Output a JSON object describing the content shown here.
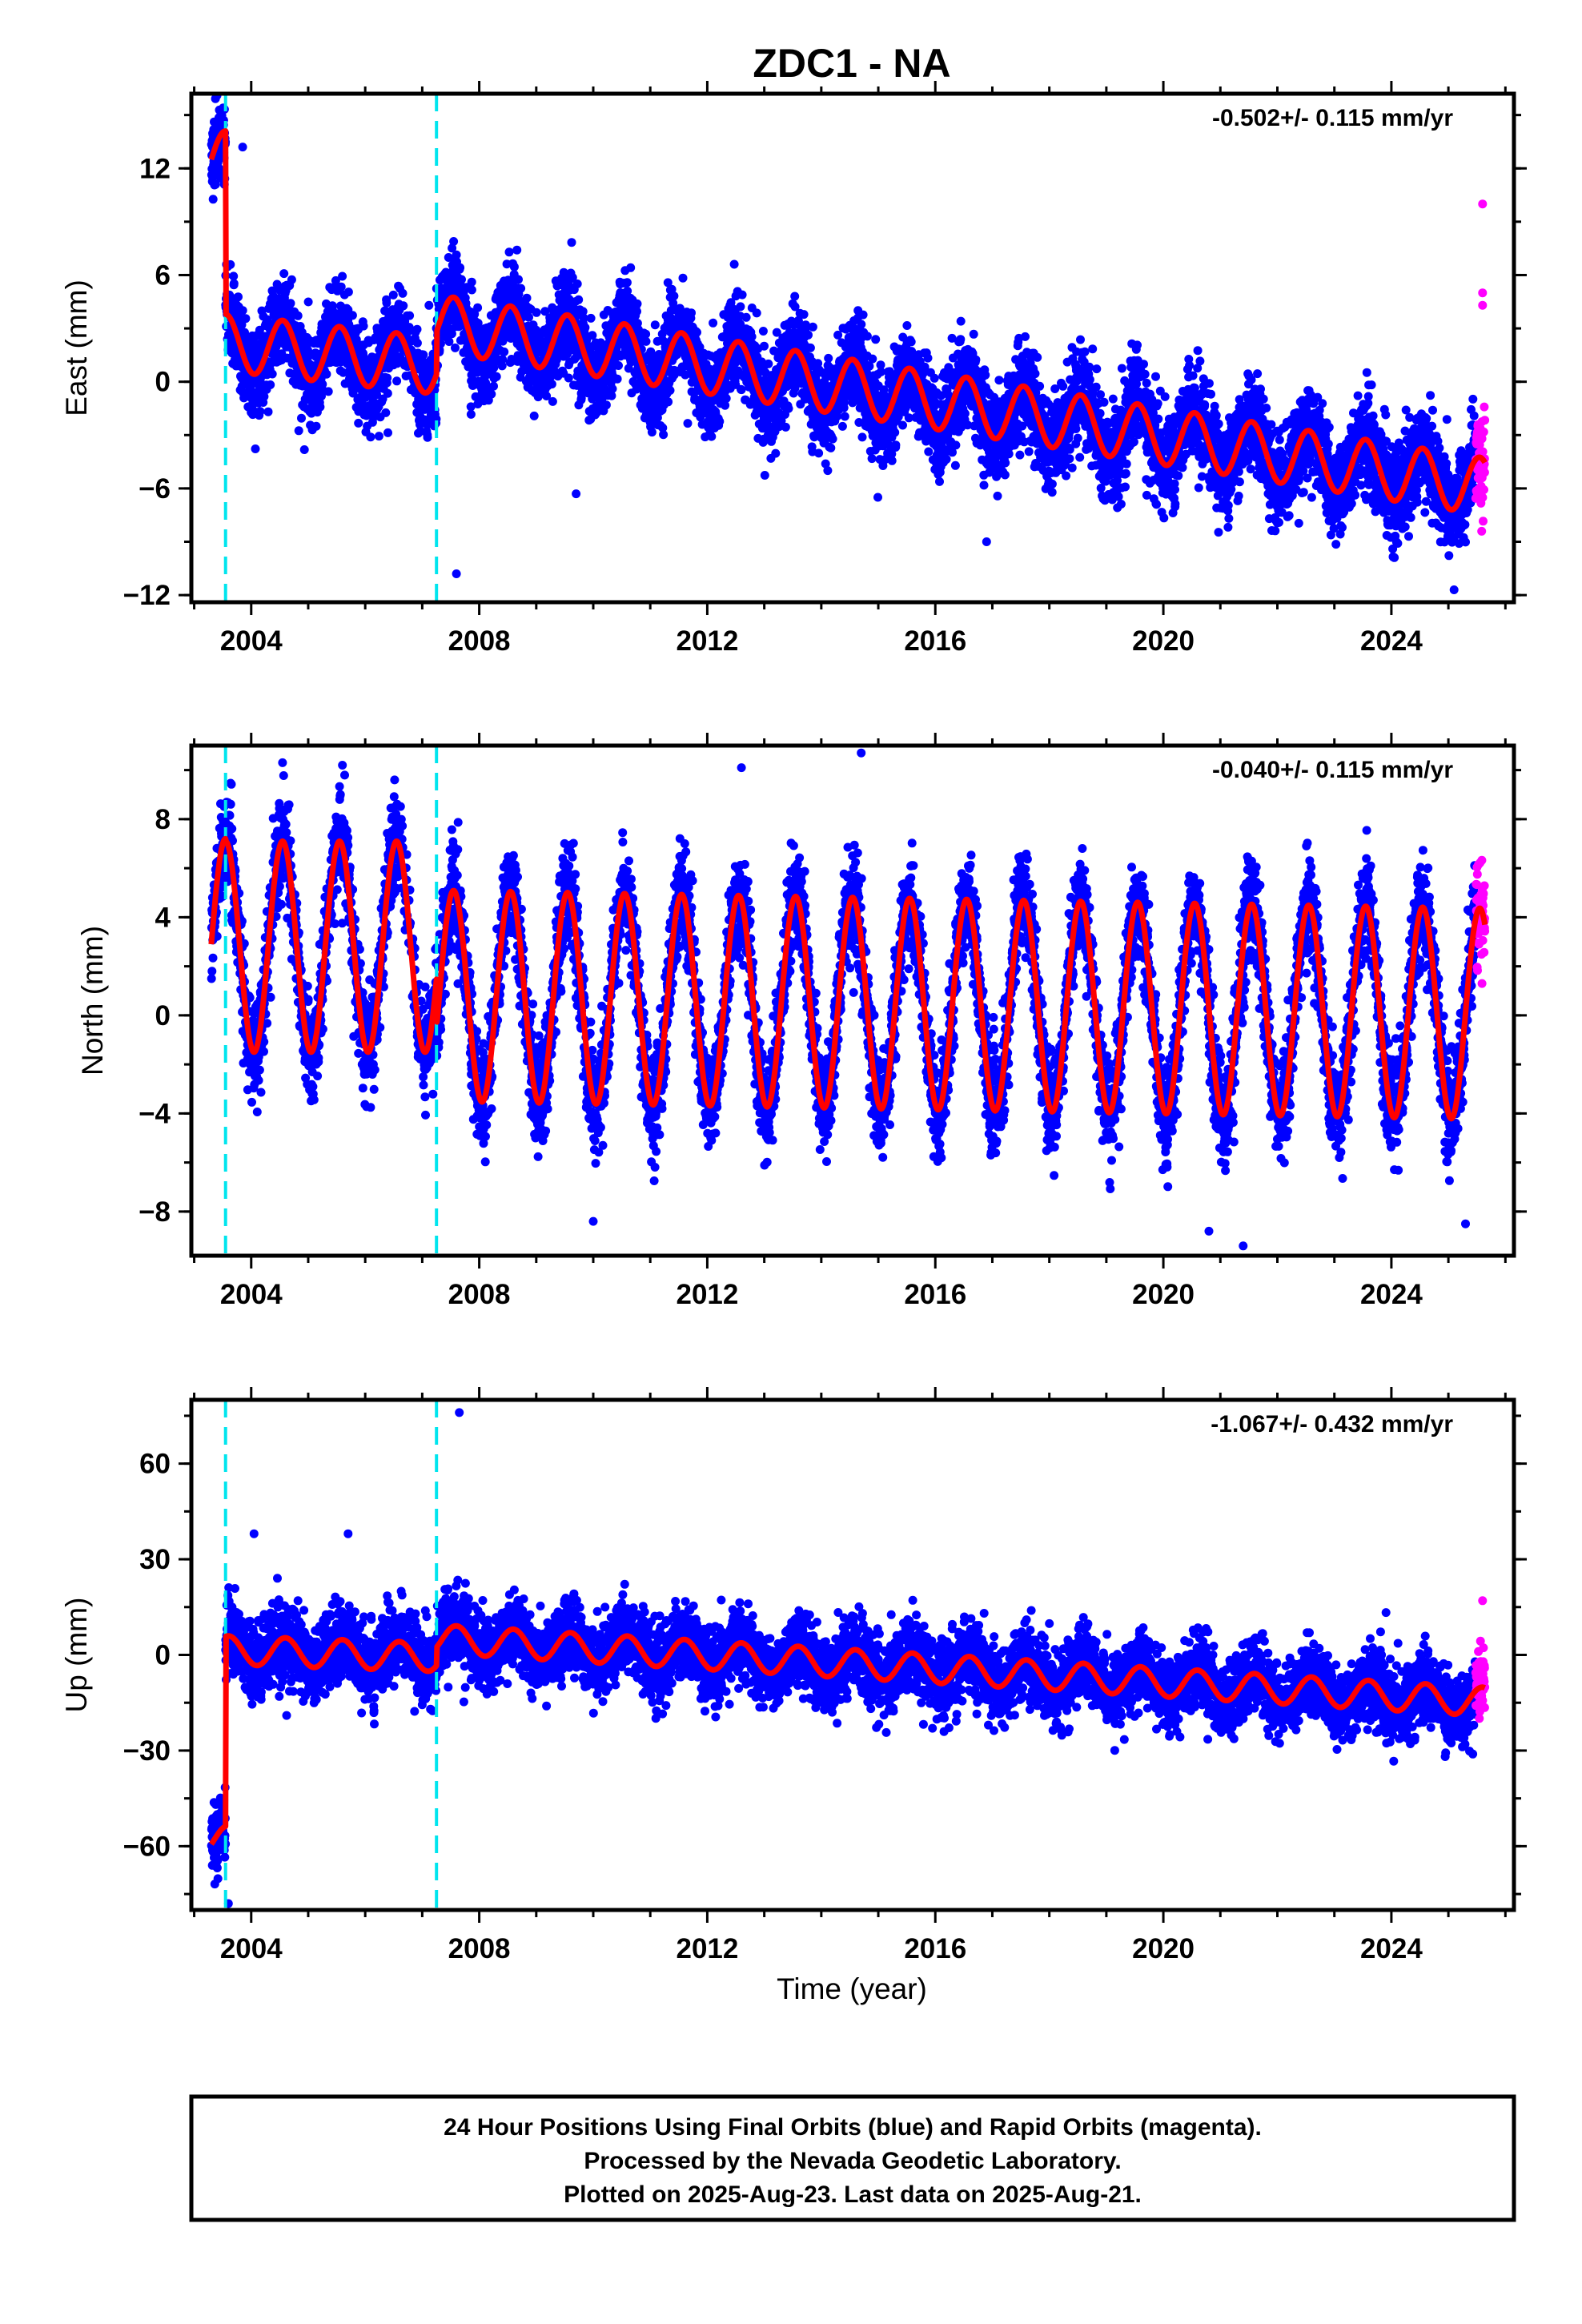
{
  "chart_data": {
    "type": "scatter",
    "title": "ZDC1 - NA",
    "xlabel": "Time (year)",
    "xlim": [
      2002.95,
      2026.15
    ],
    "x_ticks": [
      "2004",
      "2008",
      "2012",
      "2016",
      "2020",
      "2024"
    ],
    "colors": {
      "final_orbits": "#0000ff",
      "rapid_orbits": "#ff00ff",
      "model": "#ff0000",
      "offset_lines": "#00e5ee",
      "axes": "#000000"
    },
    "offset_epochs": [
      2003.55,
      2007.25
    ],
    "data_start": 2003.3,
    "data_end": 2025.64,
    "rapid_start": 2025.48,
    "panels": [
      {
        "id": "east",
        "ylabel": "East (mm)",
        "ylim": [
          -12.4,
          16.2
        ],
        "yticks": [
          "12",
          "6",
          "0",
          "-6",
          "-12"
        ],
        "rate_label": "-0.502+/- 0.115 mm/yr",
        "model": {
          "segments": [
            {
              "from": 2003.3,
              "to": 2003.55,
              "level": 12.5,
              "slope": 0
            },
            {
              "from": 2003.55,
              "to": 2007.25,
              "level": 2.2,
              "slope": -0.35
            },
            {
              "from": 2007.25,
              "to": 2025.64,
              "level": 3.3,
              "slope": -0.5
            }
          ],
          "amplitude": 1.6,
          "annual_peak": 0.55,
          "noise": 1.5
        },
        "outliers": [
          [
            2003.85,
            13.2
          ],
          [
            2007.6,
            -10.8
          ],
          [
            2009.7,
            -6.3
          ],
          [
            2016.9,
            -9.0
          ],
          [
            2025.1,
            -11.7
          ],
          [
            2025.6,
            10.0
          ],
          [
            2025.6,
            5.0
          ],
          [
            2025.6,
            4.3
          ]
        ]
      },
      {
        "id": "north",
        "ylabel": "North (mm)",
        "ylim": [
          -9.8,
          11.0
        ],
        "yticks": [
          "8",
          "4",
          "0",
          "-4",
          "-8"
        ],
        "rate_label": "-0.040+/- 0.115 mm/yr",
        "model": {
          "segments": [
            {
              "from": 2003.3,
              "to": 2003.55,
              "level": 2.9,
              "slope": 0
            },
            {
              "from": 2003.55,
              "to": 2007.25,
              "level": 2.8,
              "slope": 0
            },
            {
              "from": 2007.25,
              "to": 2025.64,
              "level": 0.8,
              "slope": -0.04
            }
          ],
          "amplitude": 4.3,
          "annual_peak": 0.55,
          "noise": 1.2
        },
        "outliers": [
          [
            2004.55,
            10.3
          ],
          [
            2005.6,
            10.2
          ],
          [
            2012.6,
            10.1
          ],
          [
            2014.7,
            10.7
          ],
          [
            2010.0,
            -8.4
          ],
          [
            2020.8,
            -8.8
          ],
          [
            2021.4,
            -9.4
          ],
          [
            2025.3,
            -8.5
          ]
        ]
      },
      {
        "id": "up",
        "ylabel": "Up (mm)",
        "ylim": [
          -80,
          80
        ],
        "yticks": [
          "60",
          "30",
          "0",
          "-30",
          "-60"
        ],
        "rate_label": "-1.067+/- 0.432 mm/yr",
        "model": {
          "segments": [
            {
              "from": 2003.3,
              "to": 2003.55,
              "level": -58,
              "slope": 0
            },
            {
              "from": 2003.55,
              "to": 2007.25,
              "level": 1.5,
              "slope": -0.6
            },
            {
              "from": 2007.25,
              "to": 2025.64,
              "level": 5.0,
              "slope": -1.07
            }
          ],
          "amplitude": 4.5,
          "annual_peak": 0.6,
          "noise": 6.5
        },
        "outliers": [
          [
            2004.05,
            38
          ],
          [
            2005.7,
            38
          ],
          [
            2007.65,
            76
          ],
          [
            2003.6,
            -78
          ],
          [
            2025.6,
            17
          ]
        ]
      }
    ],
    "footer": [
      "24 Hour Positions Using Final Orbits (blue) and Rapid Orbits (magenta).",
      "Processed by the Nevada Geodetic Laboratory.",
      "Plotted on 2025-Aug-23. Last data on 2025-Aug-21."
    ]
  }
}
